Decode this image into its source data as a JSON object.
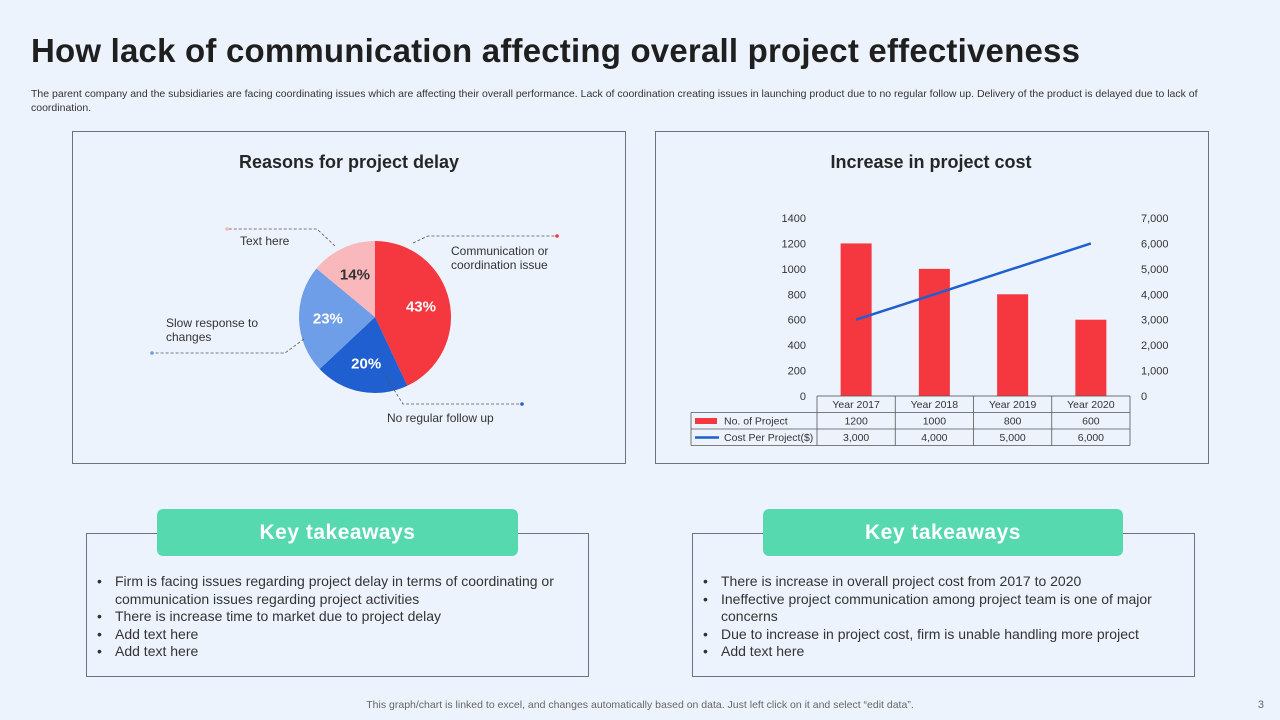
{
  "title": "How lack of communication affecting overall project effectiveness",
  "subtitle": "The parent company and the subsidiaries are facing coordinating issues which are affecting their overall performance. Lack of coordination creating issues in launching product due  to no regular follow up. Delivery of the product is delayed due to lack of coordination.",
  "chart_data": [
    {
      "type": "pie",
      "title": "Reasons for project delay",
      "slices": [
        {
          "label": "Communication or coordination issue",
          "value": 43,
          "display": "43%",
          "color": "#f5373f"
        },
        {
          "label": "No regular follow up",
          "value": 20,
          "display": "20%",
          "color": "#1f5fcf"
        },
        {
          "label": "Slow response to changes",
          "value": 23,
          "display": "23%",
          "color": "#6f9ee8"
        },
        {
          "label": "Text here",
          "value": 14,
          "display": "14%",
          "color": "#f9b8bb"
        }
      ]
    },
    {
      "type": "bar",
      "title": "Increase in project cost",
      "categories": [
        "Year 2017",
        "Year 2018",
        "Year 2019",
        "Year 2020"
      ],
      "series": [
        {
          "name": "No. of Project",
          "kind": "bar",
          "axis": "left",
          "values": [
            1200,
            1000,
            800,
            600
          ],
          "display": [
            "1200",
            "1000",
            "800",
            "600"
          ],
          "color": "#f5373f"
        },
        {
          "name": "Cost Per Project($)",
          "kind": "line",
          "axis": "right",
          "values": [
            3000,
            4000,
            5000,
            6000
          ],
          "display": [
            "3,000",
            "4,000",
            "5,000",
            "6,000"
          ],
          "color": "#1f5fcf"
        }
      ],
      "ylim_left": [
        0,
        1400
      ],
      "yticks_left": [
        "0",
        "200",
        "400",
        "600",
        "800",
        "1000",
        "1200",
        "1400"
      ],
      "ylim_right": [
        0,
        7000
      ],
      "yticks_right": [
        "0",
        "1,000",
        "2,000",
        "3,000",
        "4,000",
        "5,000",
        "6,000",
        "7,000"
      ],
      "data_table": true
    }
  ],
  "takeaways": [
    {
      "heading": "Key takeaways",
      "items": [
        "Firm is facing issues regarding project delay in terms of coordinating or communication issues regarding project activities",
        "There is increase time to market due to project delay",
        "Add text here",
        "Add text here"
      ]
    },
    {
      "heading": "Key takeaways",
      "items": [
        "There is increase in overall project cost from 2017 to 2020",
        "Ineffective project communication among project team is one of major concerns",
        "Due to increase in project cost, firm is unable handling more project",
        "Add text here"
      ]
    }
  ],
  "footer": "This graph/chart is linked to excel,  and changes automatically based on data. Just left click on it and select “edit data”.",
  "page_number": "3"
}
